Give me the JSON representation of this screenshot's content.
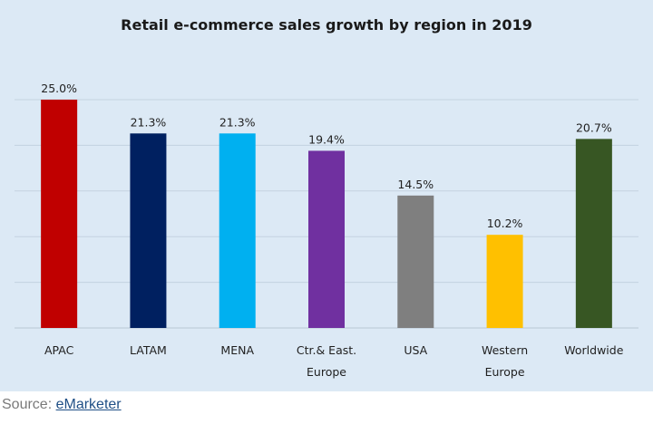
{
  "chart_data": {
    "type": "bar",
    "title": "Retail e-commerce sales growth by region in 2019",
    "categories": [
      [
        "APAC"
      ],
      [
        "LATAM"
      ],
      [
        "MENA"
      ],
      [
        "Ctr.& East.",
        "Europe"
      ],
      [
        "USA"
      ],
      [
        "Western",
        "Europe"
      ],
      [
        "Worldwide"
      ]
    ],
    "values": [
      25.0,
      21.3,
      21.3,
      19.4,
      14.5,
      10.2,
      20.7
    ],
    "value_labels": [
      "25.0%",
      "21.3%",
      "21.3%",
      "19.4%",
      "14.5%",
      "10.2%",
      "20.7%"
    ],
    "colors": [
      "#c00000",
      "#002060",
      "#00b0f0",
      "#7030a0",
      "#7f7f7f",
      "#ffc000",
      "#375623"
    ],
    "ylim": [
      0,
      25
    ],
    "grid": true,
    "xlabel": "",
    "ylabel": ""
  },
  "source": {
    "prefix": "Source: ",
    "link_text": "eMarketer"
  }
}
